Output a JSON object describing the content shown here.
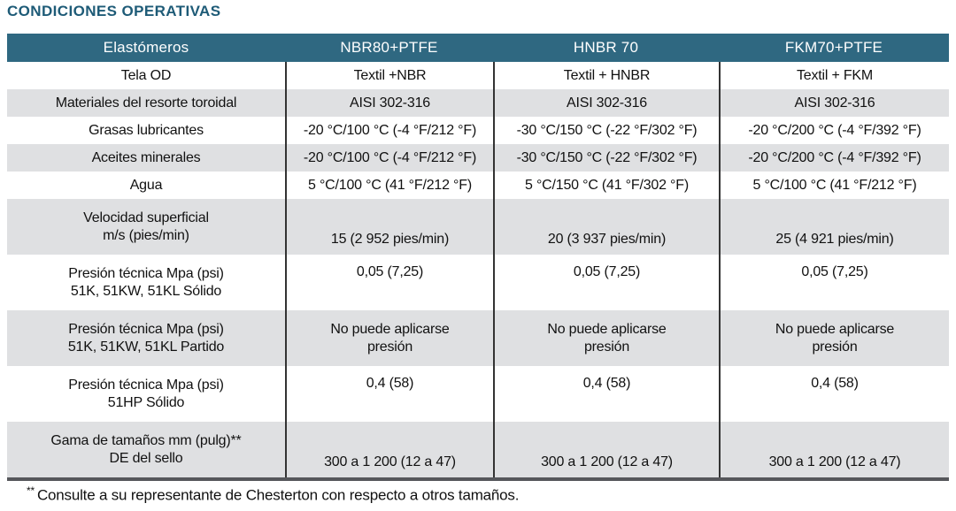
{
  "title": "CONDICIONES OPERATIVAS",
  "colors": {
    "title_text": "#1e5b77",
    "header_bg": "#2f6881",
    "header_text": "#ffffff",
    "stripe_bg": "#dfe0e2",
    "column_divider": "#333333",
    "bottom_border": "#56575b",
    "body_text": "#111111"
  },
  "table": {
    "header": [
      "Elastómeros",
      "NBR80+PTFE",
      "HNBR 70",
      "FKM70+PTFE"
    ],
    "rows": [
      {
        "label": "Tela OD",
        "values": [
          "Textil +NBR",
          "Textil + HNBR",
          "Textil + FKM"
        ]
      },
      {
        "label": "Materiales del resorte toroidal",
        "values": [
          "AISI 302-316",
          "AISI 302-316",
          "AISI 302-316"
        ]
      },
      {
        "label": "Grasas lubricantes",
        "values": [
          "-20 °C/100 °C (-4 °F/212 °F)",
          "-30 °C/150 °C (-22 °F/302 °F)",
          "-20 °C/200 °C (-4 °F/392 °F)"
        ]
      },
      {
        "label": "Aceites minerales",
        "values": [
          "-20 °C/100 °C (-4 °F/212 °F)",
          "-30 °C/150 °C (-22 °F/302 °F)",
          "-20 °C/200 °C (-4 °F/392 °F)"
        ]
      },
      {
        "label": "Agua",
        "values": [
          "5 °C/100 °C (41 °F/212 °F)",
          "5 °C/150 °C (41 °F/302 °F)",
          "5 °C/100 °C (41 °F/212 °F)"
        ]
      },
      {
        "label": "Velocidad superficial\nm/s (pies/min)",
        "values": [
          "15 (2 952 pies/min)",
          "20 (3 937 pies/min)",
          "25 (4 921 pies/min)"
        ]
      },
      {
        "label": "Presión técnica Mpa (psi)\n51K, 51KW, 51KL Sólido",
        "values": [
          "0,05 (7,25)",
          "0,05 (7,25)",
          "0,05 (7,25)"
        ]
      },
      {
        "label": "Presión técnica Mpa (psi)\n51K, 51KW, 51KL Partido",
        "values": [
          "No puede aplicarse\npresión",
          "No puede aplicarse\npresión",
          "No puede aplicarse\npresión"
        ]
      },
      {
        "label": "Presión técnica Mpa (psi)\n51HP Sólido",
        "values": [
          "0,4 (58)",
          "0,4 (58)",
          "0,4 (58)"
        ]
      },
      {
        "label": "Gama de tamaños mm (pulg)**\nDE del sello",
        "values": [
          "300 a 1 200 (12 a 47)",
          "300 a 1 200 (12 a 47)",
          "300 a 1 200 (12 a 47)"
        ]
      }
    ]
  },
  "footnote": {
    "marker": "**",
    "text": "Consulte a su representante de Chesterton con respecto a otros tamaños."
  }
}
